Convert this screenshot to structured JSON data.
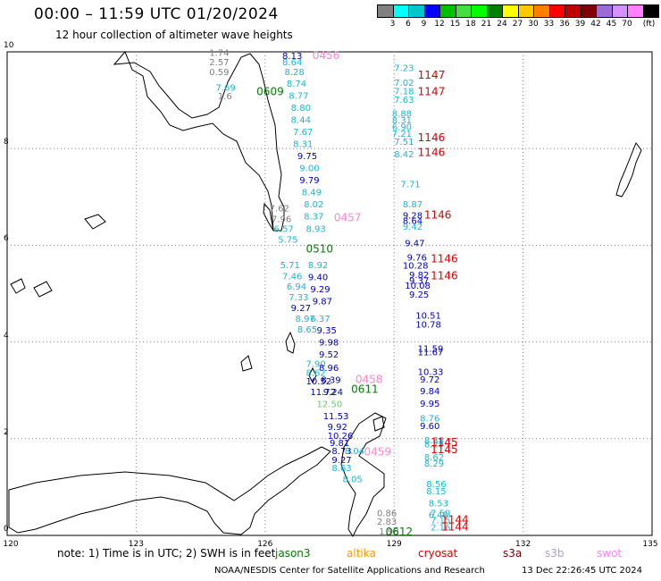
{
  "header": {
    "title": "00:00 – 11:59 UTC 01/20/2024",
    "subtitle": "12 hour collection of altimeter wave heights"
  },
  "legend": {
    "unit": "(ft)",
    "bins": [
      {
        "label": "",
        "color": "#808080"
      },
      {
        "label": "3",
        "color": "#00ffff"
      },
      {
        "label": "6",
        "color": "#00c8c8"
      },
      {
        "label": "9",
        "color": "#0000ff"
      },
      {
        "label": "12",
        "color": "#00c000"
      },
      {
        "label": "15",
        "color": "#40e040"
      },
      {
        "label": "18",
        "color": "#00ff00"
      },
      {
        "label": "21",
        "color": "#008000"
      },
      {
        "label": "24",
        "color": "#ffff00"
      },
      {
        "label": "27",
        "color": "#ffc800"
      },
      {
        "label": "30",
        "color": "#ff8000"
      },
      {
        "label": "33",
        "color": "#ff0000"
      },
      {
        "label": "36",
        "color": "#c00000"
      },
      {
        "label": "39",
        "color": "#800000"
      },
      {
        "label": "42",
        "color": "#9b6bd6"
      },
      {
        "label": "45",
        "color": "#d890ff"
      },
      {
        "label": "70",
        "color": "#ff80ff"
      },
      {
        "label": "",
        "color": "#000000"
      }
    ]
  },
  "map": {
    "lon_range": [
      120,
      135
    ],
    "lat_range": [
      0,
      10
    ],
    "x_ticks": [
      "120",
      "123",
      "126",
      "129",
      "132",
      "135"
    ],
    "y_ticks": [
      "0",
      "2",
      "4",
      "6",
      "8",
      "10"
    ],
    "colors": {
      "gray": "#808080",
      "cyan": "#17b9d6",
      "blue": "#0000cc",
      "green": "#008000",
      "red": "#e00000",
      "pink": "#ff88cc",
      "lightgreen": "#66cc66"
    },
    "passes": [
      {
        "text": "0456",
        "lon": 127.1,
        "lat": 9.85,
        "color": "pink"
      },
      {
        "text": "0609",
        "lon": 125.8,
        "lat": 9.1,
        "color": "green"
      },
      {
        "text": "1147",
        "lon": 129.55,
        "lat": 9.45,
        "color": "red"
      },
      {
        "text": "1147",
        "lon": 129.55,
        "lat": 9.1,
        "color": "red"
      },
      {
        "text": "1146",
        "lon": 129.55,
        "lat": 8.15,
        "color": "red"
      },
      {
        "text": "1146",
        "lon": 129.55,
        "lat": 7.85,
        "color": "red"
      },
      {
        "text": "0457",
        "lon": 127.6,
        "lat": 6.5,
        "color": "pink"
      },
      {
        "text": "1146",
        "lon": 129.7,
        "lat": 6.55,
        "color": "red"
      },
      {
        "text": "0510",
        "lon": 126.95,
        "lat": 5.85,
        "color": "green"
      },
      {
        "text": "1146",
        "lon": 129.85,
        "lat": 5.65,
        "color": "red"
      },
      {
        "text": "1146",
        "lon": 129.85,
        "lat": 5.3,
        "color": "red"
      },
      {
        "text": "0458",
        "lon": 128.1,
        "lat": 3.15,
        "color": "pink"
      },
      {
        "text": "0611",
        "lon": 128.0,
        "lat": 2.95,
        "color": "green"
      },
      {
        "text": "1145",
        "lon": 129.85,
        "lat": 1.85,
        "color": "red"
      },
      {
        "text": "1145",
        "lon": 129.85,
        "lat": 1.7,
        "color": "red"
      },
      {
        "text": "0459",
        "lon": 128.3,
        "lat": 1.65,
        "color": "pink"
      },
      {
        "text": "1144",
        "lon": 130.1,
        "lat": 0.25,
        "color": "red"
      },
      {
        "text": "1144",
        "lon": 130.1,
        "lat": 0.1,
        "color": "red"
      },
      {
        "text": "0612",
        "lon": 128.8,
        "lat": 0.0,
        "color": "green"
      }
    ],
    "readings": [
      {
        "text": "1.74",
        "lon": 124.7,
        "lat": 9.92,
        "color": "gray"
      },
      {
        "text": "2.57",
        "lon": 124.7,
        "lat": 9.72,
        "color": "gray"
      },
      {
        "text": "0.59",
        "lon": 124.7,
        "lat": 9.52,
        "color": "gray"
      },
      {
        "text": "7.69",
        "lon": 124.85,
        "lat": 9.2,
        "color": "cyan"
      },
      {
        "text": "1.6",
        "lon": 124.9,
        "lat": 9.02,
        "color": "gray"
      },
      {
        "text": "8.13",
        "lon": 126.4,
        "lat": 9.85,
        "color": "blue"
      },
      {
        "text": "8.64",
        "lon": 126.4,
        "lat": 9.72,
        "color": "cyan"
      },
      {
        "text": "8.28",
        "lon": 126.45,
        "lat": 9.52,
        "color": "cyan"
      },
      {
        "text": "8.74",
        "lon": 126.5,
        "lat": 9.28,
        "color": "cyan"
      },
      {
        "text": "8.77",
        "lon": 126.55,
        "lat": 9.03,
        "color": "cyan"
      },
      {
        "text": "8.80",
        "lon": 126.6,
        "lat": 8.78,
        "color": "cyan"
      },
      {
        "text": "8.44",
        "lon": 126.6,
        "lat": 8.53,
        "color": "cyan"
      },
      {
        "text": "7.67",
        "lon": 126.65,
        "lat": 8.28,
        "color": "cyan"
      },
      {
        "text": "8.31",
        "lon": 126.65,
        "lat": 8.03,
        "color": "cyan"
      },
      {
        "text": "9.75",
        "lon": 126.75,
        "lat": 7.78,
        "color": "blue"
      },
      {
        "text": "9.00",
        "lon": 126.8,
        "lat": 7.53,
        "color": "cyan"
      },
      {
        "text": "9.79",
        "lon": 126.8,
        "lat": 7.28,
        "color": "blue"
      },
      {
        "text": "8.49",
        "lon": 126.85,
        "lat": 7.03,
        "color": "cyan"
      },
      {
        "text": "8.02",
        "lon": 126.9,
        "lat": 6.78,
        "color": "cyan"
      },
      {
        "text": "7.62",
        "lon": 126.1,
        "lat": 6.7,
        "color": "gray"
      },
      {
        "text": "7.96",
        "lon": 126.15,
        "lat": 6.48,
        "color": "gray"
      },
      {
        "text": "8.37",
        "lon": 126.9,
        "lat": 6.53,
        "color": "cyan"
      },
      {
        "text": "6.57",
        "lon": 126.2,
        "lat": 6.28,
        "color": "cyan"
      },
      {
        "text": "8.93",
        "lon": 126.95,
        "lat": 6.28,
        "color": "cyan"
      },
      {
        "text": "5.75",
        "lon": 126.3,
        "lat": 6.05,
        "color": "cyan"
      },
      {
        "text": "5.71",
        "lon": 126.35,
        "lat": 5.53,
        "color": "cyan"
      },
      {
        "text": "8.92",
        "lon": 127.0,
        "lat": 5.53,
        "color": "cyan"
      },
      {
        "text": "7.46",
        "lon": 126.4,
        "lat": 5.3,
        "color": "cyan"
      },
      {
        "text": "9.40",
        "lon": 127.0,
        "lat": 5.28,
        "color": "blue"
      },
      {
        "text": "6.94",
        "lon": 126.5,
        "lat": 5.08,
        "color": "cyan"
      },
      {
        "text": "9.29",
        "lon": 127.05,
        "lat": 5.03,
        "color": "blue"
      },
      {
        "text": "7.33",
        "lon": 126.55,
        "lat": 4.86,
        "color": "cyan"
      },
      {
        "text": "9.27",
        "lon": 126.6,
        "lat": 4.64,
        "color": "blue"
      },
      {
        "text": "9.87",
        "lon": 127.1,
        "lat": 4.78,
        "color": "blue"
      },
      {
        "text": "8.97",
        "lon": 126.7,
        "lat": 4.42,
        "color": "cyan"
      },
      {
        "text": "6.37",
        "lon": 127.05,
        "lat": 4.42,
        "color": "cyan"
      },
      {
        "text": "8.65",
        "lon": 126.75,
        "lat": 4.2,
        "color": "cyan"
      },
      {
        "text": "9.35",
        "lon": 127.2,
        "lat": 4.18,
        "color": "blue"
      },
      {
        "text": "9.98",
        "lon": 127.25,
        "lat": 3.93,
        "color": "blue"
      },
      {
        "text": "9.52",
        "lon": 127.25,
        "lat": 3.68,
        "color": "blue"
      },
      {
        "text": "7.90",
        "lon": 126.95,
        "lat": 3.48,
        "color": "cyan"
      },
      {
        "text": "8.96",
        "lon": 127.25,
        "lat": 3.4,
        "color": "blue"
      },
      {
        "text": "8.62",
        "lon": 126.95,
        "lat": 3.3,
        "color": "cyan"
      },
      {
        "text": "10.52",
        "lon": 126.95,
        "lat": 3.12,
        "color": "blue"
      },
      {
        "text": "8.39",
        "lon": 127.3,
        "lat": 3.15,
        "color": "blue"
      },
      {
        "text": "11.72",
        "lon": 127.05,
        "lat": 2.9,
        "color": "blue"
      },
      {
        "text": "9.24",
        "lon": 127.35,
        "lat": 2.9,
        "color": "blue"
      },
      {
        "text": "12.50",
        "lon": 127.2,
        "lat": 2.65,
        "color": "lightgreen"
      },
      {
        "text": "11.53",
        "lon": 127.35,
        "lat": 2.4,
        "color": "blue"
      },
      {
        "text": "9.92",
        "lon": 127.45,
        "lat": 2.18,
        "color": "blue"
      },
      {
        "text": "10.26",
        "lon": 127.45,
        "lat": 2.0,
        "color": "blue"
      },
      {
        "text": "9.81",
        "lon": 127.5,
        "lat": 1.85,
        "color": "blue"
      },
      {
        "text": "8.73",
        "lon": 127.55,
        "lat": 1.68,
        "color": "blue"
      },
      {
        "text": "8.04",
        "lon": 127.85,
        "lat": 1.68,
        "color": "cyan"
      },
      {
        "text": "9.27",
        "lon": 127.55,
        "lat": 1.5,
        "color": "blue"
      },
      {
        "text": "8.63",
        "lon": 127.55,
        "lat": 1.33,
        "color": "cyan"
      },
      {
        "text": "8.05",
        "lon": 127.8,
        "lat": 1.1,
        "color": "cyan"
      },
      {
        "text": "7.23",
        "lon": 129.0,
        "lat": 9.6,
        "color": "cyan"
      },
      {
        "text": "7.02",
        "lon": 129.0,
        "lat": 9.3,
        "color": "cyan"
      },
      {
        "text": "7.18",
        "lon": 129.0,
        "lat": 9.12,
        "color": "cyan"
      },
      {
        "text": "7.63",
        "lon": 129.0,
        "lat": 8.95,
        "color": "cyan"
      },
      {
        "text": "8.88",
        "lon": 128.95,
        "lat": 8.66,
        "color": "cyan"
      },
      {
        "text": "8.31",
        "lon": 128.95,
        "lat": 8.52,
        "color": "cyan"
      },
      {
        "text": "6.90",
        "lon": 128.95,
        "lat": 8.38,
        "color": "cyan"
      },
      {
        "text": "7.21",
        "lon": 128.95,
        "lat": 8.24,
        "color": "cyan"
      },
      {
        "text": "7.51",
        "lon": 129.0,
        "lat": 8.08,
        "color": "cyan"
      },
      {
        "text": "8.42",
        "lon": 129.0,
        "lat": 7.82,
        "color": "cyan"
      },
      {
        "text": "7.71",
        "lon": 129.15,
        "lat": 7.2,
        "color": "cyan"
      },
      {
        "text": "8.87",
        "lon": 129.2,
        "lat": 6.78,
        "color": "cyan"
      },
      {
        "text": "9.28",
        "lon": 129.2,
        "lat": 6.55,
        "color": "blue"
      },
      {
        "text": "8.64",
        "lon": 129.2,
        "lat": 6.44,
        "color": "blue"
      },
      {
        "text": "9.42",
        "lon": 129.2,
        "lat": 6.32,
        "color": "cyan"
      },
      {
        "text": "9.47",
        "lon": 129.25,
        "lat": 5.98,
        "color": "blue"
      },
      {
        "text": "9.76",
        "lon": 129.3,
        "lat": 5.68,
        "color": "blue"
      },
      {
        "text": "10.28",
        "lon": 129.2,
        "lat": 5.52,
        "color": "blue"
      },
      {
        "text": "9.82",
        "lon": 129.35,
        "lat": 5.32,
        "color": "blue"
      },
      {
        "text": "9.37",
        "lon": 129.35,
        "lat": 5.2,
        "color": "blue"
      },
      {
        "text": "10.08",
        "lon": 129.25,
        "lat": 5.1,
        "color": "blue"
      },
      {
        "text": "9.25",
        "lon": 129.35,
        "lat": 4.92,
        "color": "blue"
      },
      {
        "text": "10.51",
        "lon": 129.5,
        "lat": 4.48,
        "color": "blue"
      },
      {
        "text": "10.78",
        "lon": 129.5,
        "lat": 4.3,
        "color": "blue"
      },
      {
        "text": "11.59",
        "lon": 129.55,
        "lat": 3.8,
        "color": "blue"
      },
      {
        "text": "11.67",
        "lon": 129.55,
        "lat": 3.72,
        "color": "blue"
      },
      {
        "text": "10.33",
        "lon": 129.55,
        "lat": 3.32,
        "color": "blue"
      },
      {
        "text": "9.72",
        "lon": 129.6,
        "lat": 3.16,
        "color": "blue"
      },
      {
        "text": "9.84",
        "lon": 129.6,
        "lat": 2.92,
        "color": "blue"
      },
      {
        "text": "9.95",
        "lon": 129.6,
        "lat": 2.66,
        "color": "blue"
      },
      {
        "text": "8.76",
        "lon": 129.6,
        "lat": 2.36,
        "color": "cyan"
      },
      {
        "text": "9.60",
        "lon": 129.6,
        "lat": 2.2,
        "color": "blue"
      },
      {
        "text": "8.38",
        "lon": 129.7,
        "lat": 1.9,
        "color": "cyan"
      },
      {
        "text": "8.29",
        "lon": 129.7,
        "lat": 1.82,
        "color": "cyan"
      },
      {
        "text": "8.62",
        "lon": 129.7,
        "lat": 1.55,
        "color": "cyan"
      },
      {
        "text": "8.29",
        "lon": 129.7,
        "lat": 1.42,
        "color": "cyan"
      },
      {
        "text": "8.56",
        "lon": 129.75,
        "lat": 1.0,
        "color": "cyan"
      },
      {
        "text": "8.15",
        "lon": 129.75,
        "lat": 0.85,
        "color": "cyan"
      },
      {
        "text": "8.53",
        "lon": 129.8,
        "lat": 0.6,
        "color": "cyan"
      },
      {
        "text": "6.45",
        "lon": 129.8,
        "lat": 0.36,
        "color": "cyan"
      },
      {
        "text": "7.59",
        "lon": 129.85,
        "lat": 0.4,
        "color": "cyan"
      },
      {
        "text": "0.86",
        "lon": 128.6,
        "lat": 0.4,
        "color": "gray"
      },
      {
        "text": "7.15",
        "lon": 129.85,
        "lat": 0.25,
        "color": "cyan"
      },
      {
        "text": "2.83",
        "lon": 128.6,
        "lat": 0.22,
        "color": "gray"
      },
      {
        "text": "2.16",
        "lon": 129.85,
        "lat": 0.1,
        "color": "cyan"
      },
      {
        "text": "1.98",
        "lon": 128.65,
        "lat": 0.02,
        "color": "gray"
      }
    ]
  },
  "footer": {
    "note": "note:  1) Time is in UTC;  2) SWH is in feet",
    "missions": [
      {
        "label": "jason3",
        "color": "#008000"
      },
      {
        "label": "altika",
        "color": "#ff9900"
      },
      {
        "label": "cryosat",
        "color": "#e00000"
      },
      {
        "label": "s3a",
        "color": "#800000"
      },
      {
        "label": "s3b",
        "color": "#b0a0e0"
      },
      {
        "label": "swot",
        "color": "#ff80ff"
      }
    ],
    "credit": "NOAA/NESDIS Center for Satellite Applications and Research",
    "timestamp": "13 Dec 22:26:45 UTC 2024"
  }
}
